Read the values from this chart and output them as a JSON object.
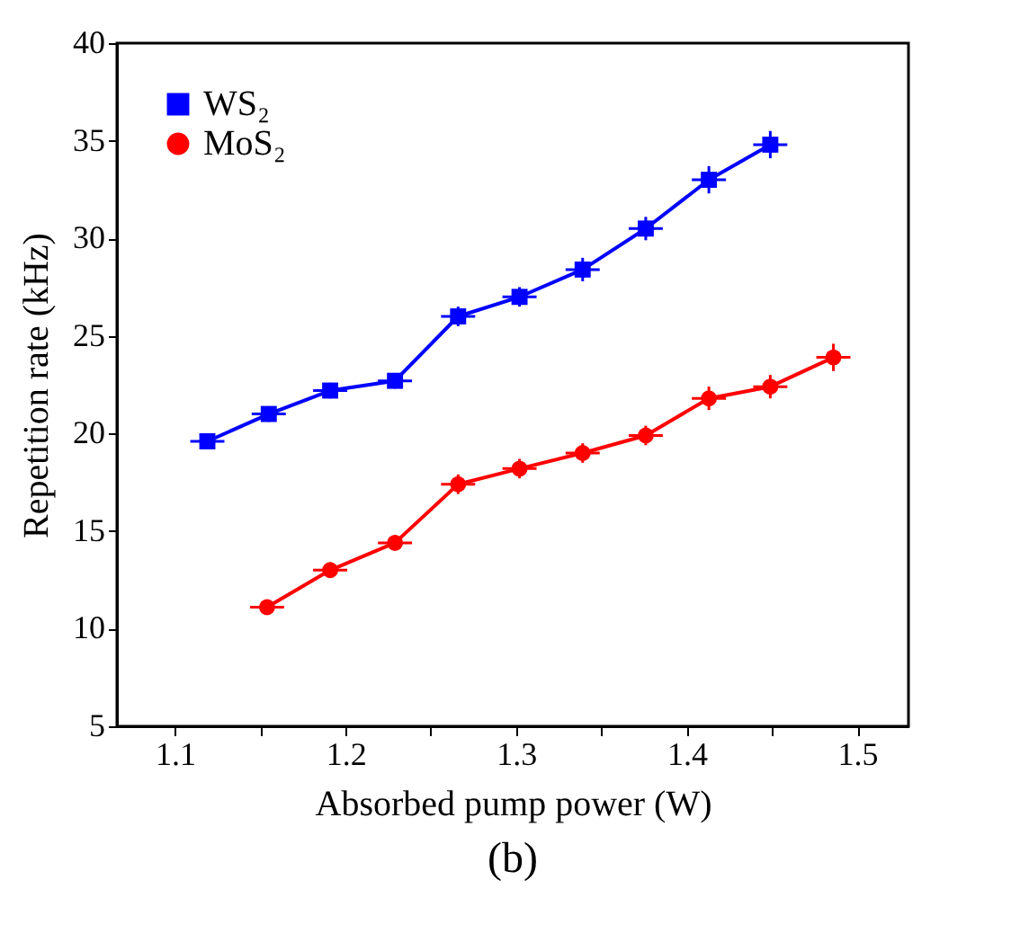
{
  "chart_data": {
    "type": "line",
    "xlabel": "Absorbed pump power (W)",
    "ylabel": "Repetition rate (kHz)",
    "xlim": [
      1.066,
      1.53
    ],
    "ylim": [
      5,
      40
    ],
    "xticks": [
      1.1,
      {
        "value": 1.15,
        "label": null
      },
      1.2,
      {
        "value": 1.25,
        "label": null
      },
      1.3,
      {
        "value": 1.35,
        "label": null
      },
      1.4,
      {
        "value": 1.45,
        "label": null
      },
      1.5
    ],
    "yticks": [
      5,
      10,
      15,
      20,
      25,
      30,
      35,
      40
    ],
    "grid": false,
    "legend": "top left",
    "line_style": "solid",
    "annotations": [
      "(b)"
    ],
    "series": [
      {
        "name": "WS₂",
        "color": "#0000ff",
        "marker": "square",
        "x": [
          1.119,
          1.155,
          1.191,
          1.229,
          1.266,
          1.302,
          1.339,
          1.376,
          1.413,
          1.449
        ],
        "values": [
          19.6,
          21.0,
          22.2,
          22.7,
          26.0,
          27.0,
          28.4,
          30.5,
          33.0,
          34.8
        ],
        "errors": [
          0.4,
          0.4,
          0.4,
          0.4,
          0.5,
          0.5,
          0.6,
          0.6,
          0.7,
          0.7
        ],
        "xerrors": [
          0.01,
          0.01,
          0.01,
          0.01,
          0.01,
          0.01,
          0.01,
          0.01,
          0.01,
          0.01
        ]
      },
      {
        "name": "MoS₂",
        "color": "#ff0000",
        "marker": "circle",
        "x": [
          1.154,
          1.191,
          1.229,
          1.266,
          1.302,
          1.339,
          1.376,
          1.413,
          1.449,
          1.486
        ],
        "values": [
          11.1,
          13.0,
          14.4,
          17.4,
          18.2,
          19.0,
          19.9,
          21.8,
          22.4,
          23.9
        ],
        "errors": [
          0.3,
          0.4,
          0.4,
          0.5,
          0.5,
          0.5,
          0.5,
          0.6,
          0.6,
          0.7
        ],
        "xerrors": [
          0.01,
          0.01,
          0.01,
          0.01,
          0.01,
          0.01,
          0.01,
          0.01,
          0.01,
          0.01
        ]
      }
    ]
  }
}
